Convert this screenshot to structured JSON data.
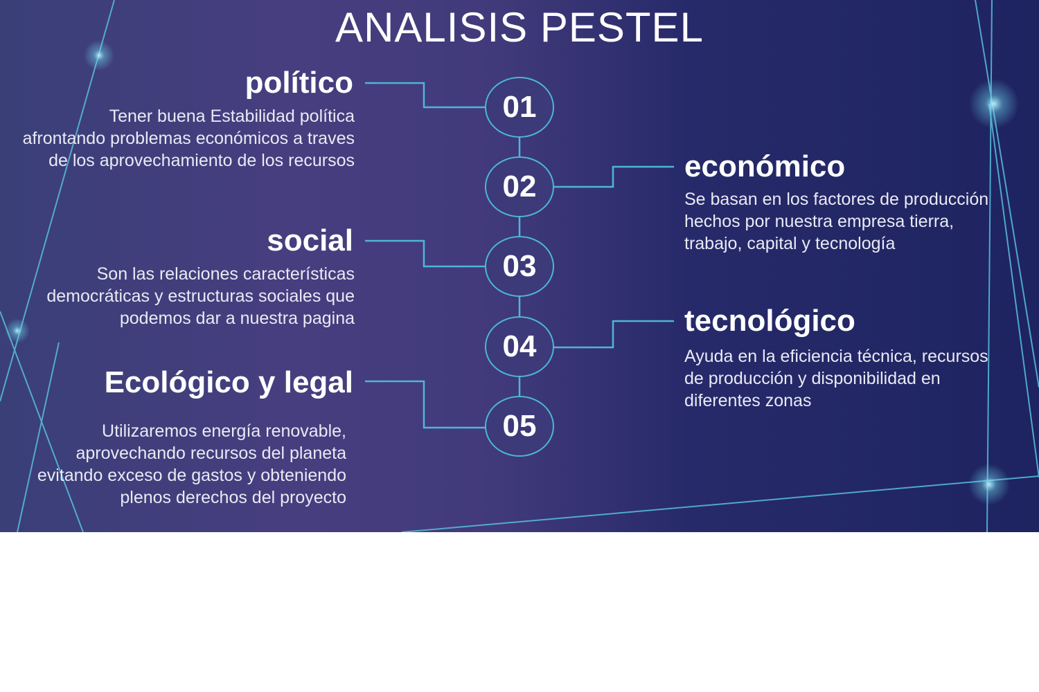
{
  "slide": {
    "title": "ANALISIS PESTEL",
    "colors": {
      "background_start": "#3a3f78",
      "background_end": "#1e2460",
      "connector": "#4fb6d3",
      "text": "#ffffff"
    }
  },
  "factors": [
    {
      "number": "01",
      "heading": "político",
      "body": "Tener buena Estabilidad política afrontando problemas económicos a traves de los aprovechamiento de los recursos",
      "side": "left"
    },
    {
      "number": "02",
      "heading": "económico",
      "body": "Se basan en los factores de producción hechos por nuestra empresa tierra, trabajo, capital y tecnología",
      "side": "right"
    },
    {
      "number": "03",
      "heading": "social",
      "body": "Son las relaciones características democráticas y estructuras sociales que podemos dar a nuestra pagina",
      "side": "left"
    },
    {
      "number": "04",
      "heading": "tecnológico",
      "body": "Ayuda en la eficiencia técnica, recursos de producción y disponibilidad en diferentes zonas",
      "side": "right"
    },
    {
      "number": "05",
      "heading": "Ecológico y legal",
      "body": "Utilizaremos energía renovable, aprovechando recursos del planeta evitando exceso de gastos y obteniendo plenos derechos del proyecto",
      "side": "left"
    }
  ]
}
